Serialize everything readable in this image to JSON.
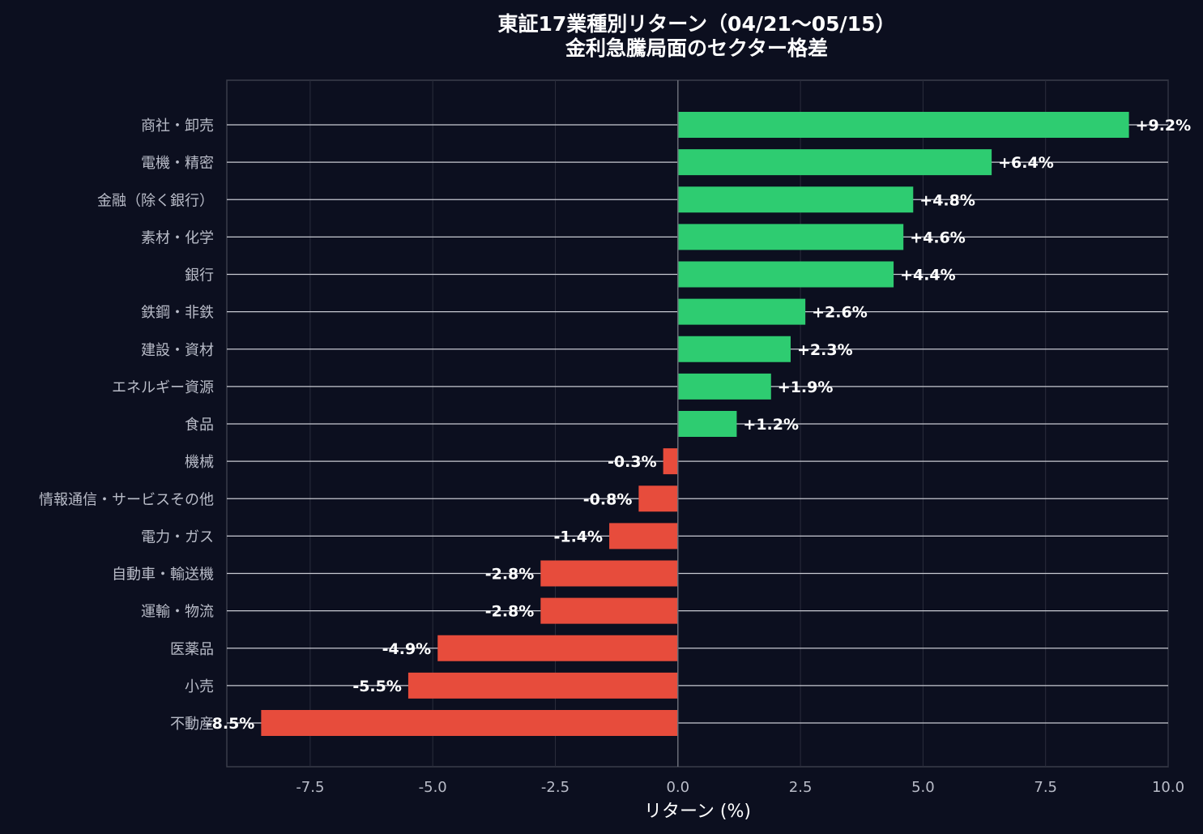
{
  "chart_data": {
    "type": "bar",
    "orientation": "horizontal",
    "title": [
      "東証17業種別リターン（04/21〜05/15）",
      "金利急騰局面のセクター格差"
    ],
    "xlabel": "リターン (%)",
    "ylabel": "",
    "xlim": [
      -9.2,
      10.0
    ],
    "xticks": [
      -7.5,
      -5.0,
      -2.5,
      0.0,
      2.5,
      5.0,
      7.5,
      10.0
    ],
    "xtick_labels": [
      "-7.5",
      "-5.0",
      "-2.5",
      "0.0",
      "2.5",
      "5.0",
      "7.5",
      "10.0"
    ],
    "grid": true,
    "colors": {
      "positive": "#2ecc71",
      "negative": "#e74c3c",
      "background": "#0c0f1f"
    },
    "categories": [
      "商社・卸売",
      "電機・精密",
      "金融（除く銀行）",
      "素材・化学",
      "銀行",
      "鉄鋼・非鉄",
      "建設・資材",
      "エネルギー資源",
      "食品",
      "機械",
      "情報通信・サービスその他",
      "電力・ガス",
      "自動車・輸送機",
      "運輸・物流",
      "医薬品",
      "小売",
      "不動産"
    ],
    "values": [
      9.2,
      6.4,
      4.8,
      4.6,
      4.4,
      2.6,
      2.3,
      1.9,
      1.2,
      -0.3,
      -0.8,
      -1.4,
      -2.8,
      -2.8,
      -4.9,
      -5.5,
      -8.5
    ],
    "value_labels": [
      "+9.2%",
      "+6.4%",
      "+4.8%",
      "+4.6%",
      "+4.4%",
      "+2.6%",
      "+2.3%",
      "+1.9%",
      "+1.2%",
      "-0.3%",
      "-0.8%",
      "-1.4%",
      "-2.8%",
      "-2.8%",
      "-4.9%",
      "-5.5%",
      "-8.5%"
    ]
  }
}
